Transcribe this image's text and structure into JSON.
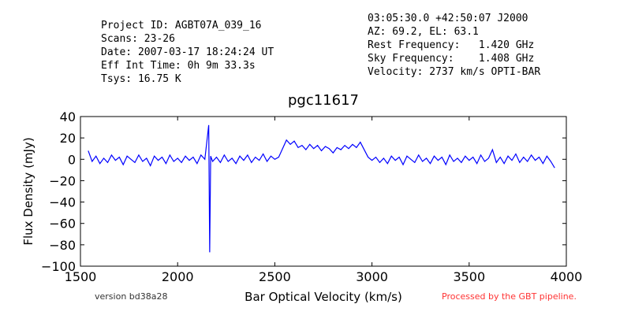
{
  "chart_data": {
    "type": "line",
    "title": "pgc11617",
    "header_left": [
      "Project ID: AGBT07A_039_16",
      "Scans: 23-26",
      "Date: 2007-03-17 18:24:24 UT",
      "Eff Int Time: 0h 9m 33.3s",
      "Tsys: 16.75 K"
    ],
    "header_right": [
      "03:05:30.0 +42:50:07 J2000",
      "AZ: 69.2, EL: 63.1",
      "Rest Frequency:   1.420 GHz",
      "Sky Frequency:    1.408 GHz",
      "Velocity: 2737 km/s OPTI-BAR"
    ],
    "footer_left": "version bd38a28",
    "footer_right": "Processed by the GBT pipeline.",
    "xlabel": "Bar Optical Velocity (km/s)",
    "ylabel": "Flux Density (mJy)",
    "xlim": [
      1500,
      4000
    ],
    "ylim": [
      -100,
      40
    ],
    "xticks": [
      1500,
      2000,
      2500,
      3000,
      3500,
      4000
    ],
    "yticks": [
      {
        "value": -100,
        "label": "−100"
      },
      {
        "value": -80,
        "label": "−80"
      },
      {
        "value": -60,
        "label": "−60"
      },
      {
        "value": -40,
        "label": "−40"
      },
      {
        "value": -20,
        "label": "−20"
      },
      0,
      20,
      40
    ],
    "grid": false,
    "series": [
      {
        "color": "#0000ff",
        "x": [
          1540,
          1560,
          1580,
          1600,
          1620,
          1640,
          1660,
          1680,
          1700,
          1720,
          1740,
          1760,
          1780,
          1800,
          1820,
          1840,
          1860,
          1880,
          1900,
          1920,
          1940,
          1960,
          1980,
          2000,
          2020,
          2040,
          2060,
          2080,
          2100,
          2120,
          2140,
          2160,
          2165,
          2170,
          2180,
          2200,
          2220,
          2240,
          2260,
          2280,
          2300,
          2320,
          2340,
          2360,
          2380,
          2400,
          2420,
          2440,
          2460,
          2480,
          2500,
          2520,
          2540,
          2560,
          2580,
          2600,
          2620,
          2640,
          2660,
          2680,
          2700,
          2720,
          2740,
          2760,
          2780,
          2800,
          2820,
          2840,
          2860,
          2880,
          2900,
          2920,
          2940,
          2960,
          2980,
          3000,
          3020,
          3040,
          3060,
          3080,
          3100,
          3120,
          3140,
          3160,
          3180,
          3200,
          3220,
          3240,
          3260,
          3280,
          3300,
          3320,
          3340,
          3360,
          3380,
          3400,
          3420,
          3440,
          3460,
          3480,
          3500,
          3520,
          3540,
          3560,
          3580,
          3600,
          3620,
          3640,
          3660,
          3680,
          3700,
          3720,
          3740,
          3760,
          3780,
          3800,
          3820,
          3840,
          3860,
          3880,
          3900,
          3920,
          3940
        ],
        "values": [
          8,
          -2,
          3,
          -4,
          1,
          -3,
          4,
          -1,
          2,
          -5,
          3,
          0,
          -3,
          4,
          -2,
          1,
          -6,
          3,
          -1,
          2,
          -4,
          4,
          -2,
          1,
          -3,
          3,
          -1,
          2,
          -4,
          4,
          0,
          32,
          -87,
          3,
          -2,
          2,
          -3,
          4,
          -2,
          1,
          -4,
          3,
          -1,
          4,
          -3,
          2,
          -1,
          5,
          -2,
          3,
          0,
          2,
          10,
          18,
          14,
          17,
          11,
          13,
          9,
          14,
          10,
          13,
          8,
          12,
          10,
          6,
          11,
          9,
          13,
          10,
          14,
          11,
          16,
          9,
          2,
          -1,
          2,
          -3,
          1,
          -4,
          3,
          -1,
          2,
          -5,
          3,
          0,
          -3,
          4,
          -2,
          1,
          -4,
          3,
          -1,
          2,
          -5,
          4,
          -2,
          1,
          -3,
          3,
          -1,
          2,
          -4,
          4,
          -2,
          1,
          9,
          -3,
          2,
          -4,
          3,
          -1,
          5,
          -3,
          2,
          -2,
          4,
          -1,
          2,
          -4,
          3,
          -2,
          -8
        ]
      }
    ]
  }
}
